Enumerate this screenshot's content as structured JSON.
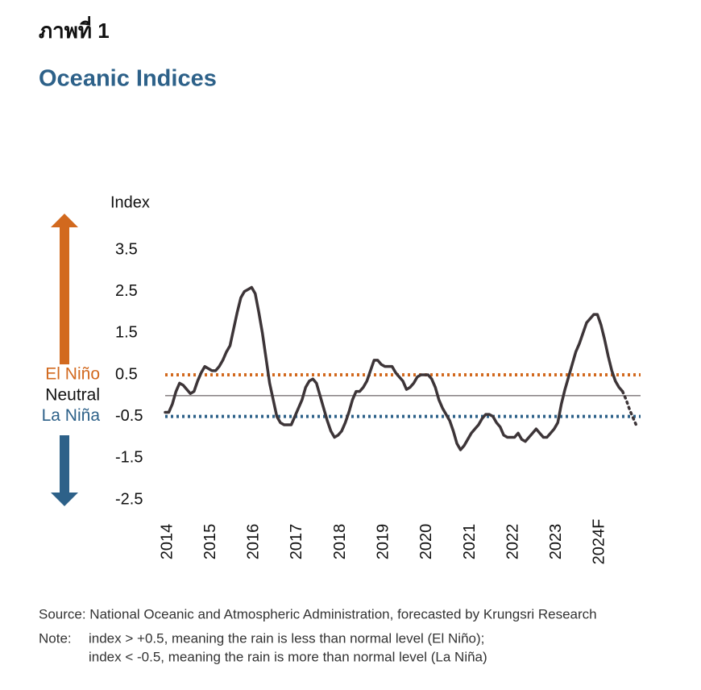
{
  "figure_label": "ภาพที่ 1",
  "chart_data": {
    "type": "line",
    "title": "Oceanic Indices",
    "ylabel": "Index",
    "categories": [
      "2014",
      null,
      null,
      null,
      null,
      null,
      null,
      null,
      null,
      null,
      null,
      null,
      "2015",
      null,
      null,
      null,
      null,
      null,
      null,
      null,
      null,
      null,
      null,
      null,
      "2016",
      null,
      null,
      null,
      null,
      null,
      null,
      null,
      null,
      null,
      null,
      null,
      "2017",
      null,
      null,
      null,
      null,
      null,
      null,
      null,
      null,
      null,
      null,
      null,
      "2018",
      null,
      null,
      null,
      null,
      null,
      null,
      null,
      null,
      null,
      null,
      null,
      "2019",
      null,
      null,
      null,
      null,
      null,
      null,
      null,
      null,
      null,
      null,
      null,
      "2020",
      null,
      null,
      null,
      null,
      null,
      null,
      null,
      null,
      null,
      null,
      null,
      "2021",
      null,
      null,
      null,
      null,
      null,
      null,
      null,
      null,
      null,
      null,
      null,
      "2022",
      null,
      null,
      null,
      null,
      null,
      null,
      null,
      null,
      null,
      null,
      null,
      "2023",
      null,
      null,
      null,
      null,
      null,
      null,
      null,
      null,
      null,
      null,
      null,
      "2024F",
      null,
      null,
      null,
      null,
      null,
      null,
      null,
      null,
      null,
      null,
      null
    ],
    "series": [
      {
        "color": "#3d3538",
        "dash": "solid",
        "values": [
          -0.4,
          -0.4,
          -0.2,
          0.1,
          0.3,
          0.25,
          0.15,
          0.05,
          0.1,
          0.35,
          0.55,
          0.7,
          0.65,
          0.6,
          0.6,
          0.7,
          0.85,
          1.05,
          1.2,
          1.6,
          2.0,
          2.35,
          2.5,
          2.55,
          2.6,
          2.45,
          2.0,
          1.5,
          0.9,
          0.3,
          -0.1,
          -0.5,
          -0.65,
          -0.7,
          -0.7,
          -0.7,
          -0.5,
          -0.3,
          -0.1,
          0.2,
          0.35,
          0.4,
          0.3,
          0.0,
          -0.3,
          -0.6,
          -0.85,
          -1.0,
          -0.95,
          -0.85,
          -0.65,
          -0.4,
          -0.1,
          0.1,
          0.1,
          0.2,
          0.35,
          0.6,
          0.85,
          0.85,
          0.75,
          0.7,
          0.7,
          0.7,
          0.55,
          0.45,
          0.35,
          0.15,
          0.2,
          0.3,
          0.45,
          0.5,
          0.5,
          0.5,
          0.4,
          0.2,
          -0.1,
          -0.3,
          -0.45,
          -0.6,
          -0.85,
          -1.15,
          -1.3,
          -1.2,
          -1.05,
          -0.9,
          -0.8,
          -0.7,
          -0.55,
          -0.45,
          -0.45,
          -0.5,
          -0.65,
          -0.75,
          -0.95,
          -1.0,
          -1.0,
          -1.0,
          -0.9,
          -1.05,
          -1.1,
          -1.0,
          -0.9,
          -0.8,
          -0.9,
          -1.0,
          -1.0,
          -0.9,
          -0.8,
          -0.65,
          -0.2,
          0.15,
          0.45,
          0.75,
          1.05,
          1.25,
          1.5,
          1.75,
          1.85,
          1.95,
          1.95,
          1.7,
          1.35,
          0.95,
          0.6,
          0.35,
          0.2,
          0.1,
          null,
          null,
          null,
          null
        ]
      },
      {
        "color": "#3d3538",
        "dash": "dotted",
        "values": [
          null,
          null,
          null,
          null,
          null,
          null,
          null,
          null,
          null,
          null,
          null,
          null,
          null,
          null,
          null,
          null,
          null,
          null,
          null,
          null,
          null,
          null,
          null,
          null,
          null,
          null,
          null,
          null,
          null,
          null,
          null,
          null,
          null,
          null,
          null,
          null,
          null,
          null,
          null,
          null,
          null,
          null,
          null,
          null,
          null,
          null,
          null,
          null,
          null,
          null,
          null,
          null,
          null,
          null,
          null,
          null,
          null,
          null,
          null,
          null,
          null,
          null,
          null,
          null,
          null,
          null,
          null,
          null,
          null,
          null,
          null,
          null,
          null,
          null,
          null,
          null,
          null,
          null,
          null,
          null,
          null,
          null,
          null,
          null,
          null,
          null,
          null,
          null,
          null,
          null,
          null,
          null,
          null,
          null,
          null,
          null,
          null,
          null,
          null,
          null,
          null,
          null,
          null,
          null,
          null,
          null,
          null,
          null,
          null,
          null,
          null,
          null,
          null,
          null,
          null,
          null,
          null,
          null,
          null,
          null,
          null,
          null,
          null,
          null,
          null,
          null,
          null,
          0.1,
          -0.1,
          -0.35,
          -0.55,
          -0.75
        ]
      }
    ],
    "ylim": [
      -2.5,
      3.5
    ],
    "yticks": [
      -2.5,
      -1.5,
      -0.5,
      0.5,
      1.5,
      2.5,
      3.5
    ],
    "reference_lines": [
      {
        "value": 0.5,
        "label": "El Niño",
        "color": "#d2691e",
        "dash": "dotted"
      },
      {
        "value": 0,
        "label": "Neutral",
        "color": "#7a7374",
        "dash": "solid"
      },
      {
        "value": -0.5,
        "label": "La Niña",
        "color": "#2d6189",
        "dash": "dotted"
      }
    ]
  },
  "source": "Source: National Oceanic and Atmospheric Administration, forecasted by Krungsri Research",
  "note_label": "Note:",
  "note_lines": [
    "index >  +0.5, meaning the rain is less than normal level (El Niño);",
    "index < -0.5, meaning the rain is more than normal level (La Niña)"
  ]
}
